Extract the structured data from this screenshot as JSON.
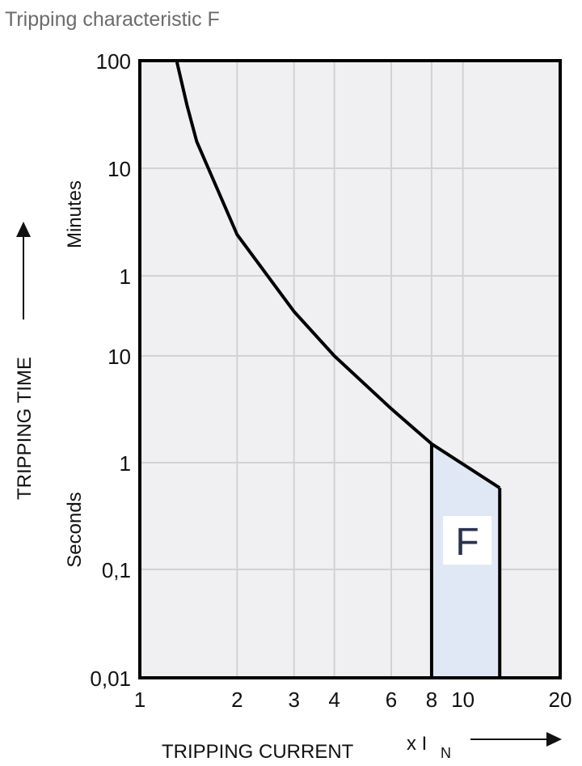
{
  "chart_data": {
    "type": "line",
    "title": "Tripping characteristic F",
    "xlabel": "TRIPPING CURRENT",
    "xunit_prefix": "x I",
    "xunit_sub": "N",
    "ylabel": "TRIPPING TIME",
    "y_minutes_label": "Minutes",
    "y_seconds_label": "Seconds",
    "xscale": "log",
    "yscale": "log",
    "xlim": [
      1,
      20
    ],
    "ylim_seconds": [
      0.01,
      6000
    ],
    "x_ticks": [
      {
        "value": 1,
        "label": "1"
      },
      {
        "value": 2,
        "label": "2"
      },
      {
        "value": 3,
        "label": "3"
      },
      {
        "value": 4,
        "label": "4"
      },
      {
        "value": 6,
        "label": "6"
      },
      {
        "value": 8,
        "label": "8"
      },
      {
        "value": 10,
        "label": "10"
      },
      {
        "value": 20,
        "label": "20"
      }
    ],
    "y_ticks": [
      {
        "seconds": 6000,
        "label": "100"
      },
      {
        "seconds": 600,
        "label": "10"
      },
      {
        "seconds": 60,
        "label": "1"
      },
      {
        "seconds": 10,
        "label": "10"
      },
      {
        "seconds": 1,
        "label": "1"
      },
      {
        "seconds": 0.1,
        "label": "0,1"
      },
      {
        "seconds": 0.01,
        "label": "0,01"
      }
    ],
    "grid": true,
    "curve": [
      {
        "x": 1.3,
        "t": 6000
      },
      {
        "x": 1.4,
        "t": 2300
      },
      {
        "x": 1.5,
        "t": 1060
      },
      {
        "x": 2,
        "t": 145
      },
      {
        "x": 3,
        "t": 27
      },
      {
        "x": 4,
        "t": 10
      },
      {
        "x": 6,
        "t": 3.2
      },
      {
        "x": 8,
        "t": 1.5
      },
      {
        "x": 13,
        "t": 0.58
      }
    ],
    "region": {
      "label": "F",
      "x_min": 8,
      "x_max": 13,
      "t_min": 0.01,
      "fill": "#e1e8f5"
    },
    "colors": {
      "plot_bg": "#f0f0f2",
      "grid": "#d2d2d2",
      "line": "#000000",
      "label_text": "#2a3350"
    }
  }
}
